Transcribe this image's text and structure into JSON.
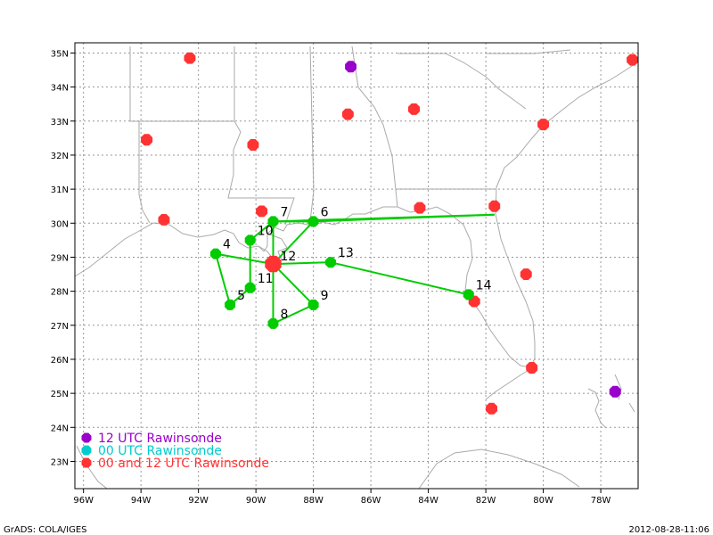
{
  "map": {
    "lon_range": [
      -96.3,
      -76.7
    ],
    "lat_range": [
      22.2,
      35.3
    ],
    "lon_ticks": [
      "96W",
      "94W",
      "92W",
      "90W",
      "88W",
      "86W",
      "84W",
      "82W",
      "80W",
      "78W"
    ],
    "lon_tick_values": [
      -96,
      -94,
      -92,
      -90,
      -88,
      -86,
      -84,
      -82,
      -80,
      -78
    ],
    "lat_ticks": [
      "23N",
      "24N",
      "25N",
      "26N",
      "27N",
      "28N",
      "29N",
      "30N",
      "31N",
      "32N",
      "33N",
      "34N",
      "35N"
    ],
    "lat_tick_values": [
      23,
      24,
      25,
      26,
      27,
      28,
      29,
      30,
      31,
      32,
      33,
      34,
      35
    ],
    "grid": "dotted",
    "colors": {
      "coast": "#aaaaaa",
      "track": "#00cc00",
      "station_both": "#ff3333",
      "station_12": "#9900cc",
      "station_00": "#00cccc",
      "center": "#ff3333"
    }
  },
  "center": {
    "label": "12",
    "lon": -89.4,
    "lat": 28.8
  },
  "drop_points": [
    {
      "label": "4",
      "lon": -91.4,
      "lat": 29.1
    },
    {
      "label": "5",
      "lon": -90.9,
      "lat": 27.6
    },
    {
      "label": "6",
      "lon": -88.0,
      "lat": 30.05
    },
    {
      "label": "7",
      "lon": -89.4,
      "lat": 30.05
    },
    {
      "label": "8",
      "lon": -89.4,
      "lat": 27.05
    },
    {
      "label": "9",
      "lon": -88.0,
      "lat": 27.6
    },
    {
      "label": "10",
      "lon": -90.2,
      "lat": 29.5
    },
    {
      "label": "11",
      "lon": -90.2,
      "lat": 28.1
    },
    {
      "label": "13",
      "lon": -87.4,
      "lat": 28.85
    },
    {
      "label": "14",
      "lon": -82.6,
      "lat": 27.9
    }
  ],
  "tracks": [
    [
      "6",
      "7"
    ],
    [
      "7",
      "10"
    ],
    [
      "10",
      "11"
    ],
    [
      "11",
      "5"
    ],
    [
      "5",
      "4"
    ],
    [
      "4",
      "12"
    ],
    [
      "12",
      "13"
    ],
    [
      "13",
      "14"
    ],
    [
      "12",
      "8"
    ],
    [
      "8",
      "9"
    ],
    [
      "9",
      "12"
    ],
    [
      "12",
      "6"
    ],
    [
      "12",
      "7"
    ],
    [
      "7",
      "FL"
    ],
    [
      "FL",
      "6"
    ]
  ],
  "track_extra_points": {
    "FL": {
      "lon": -81.7,
      "lat": 30.25
    }
  },
  "stations": [
    {
      "type": "both",
      "lon": -92.3,
      "lat": 34.85
    },
    {
      "type": "both",
      "lon": -93.8,
      "lat": 32.45
    },
    {
      "type": "both",
      "lon": -90.1,
      "lat": 32.3
    },
    {
      "type": "both",
      "lon": -86.8,
      "lat": 33.2
    },
    {
      "type": "both",
      "lon": -84.5,
      "lat": 33.35
    },
    {
      "type": "both",
      "lon": -80.0,
      "lat": 32.9
    },
    {
      "type": "both",
      "lon": -76.9,
      "lat": 34.8
    },
    {
      "type": "both",
      "lon": -93.2,
      "lat": 30.1
    },
    {
      "type": "both",
      "lon": -89.8,
      "lat": 30.35
    },
    {
      "type": "both",
      "lon": -84.3,
      "lat": 30.45
    },
    {
      "type": "both",
      "lon": -81.7,
      "lat": 30.5
    },
    {
      "type": "both",
      "lon": -82.4,
      "lat": 27.7
    },
    {
      "type": "both",
      "lon": -80.6,
      "lat": 28.5
    },
    {
      "type": "both",
      "lon": -80.4,
      "lat": 25.75
    },
    {
      "type": "both",
      "lon": -81.8,
      "lat": 24.55
    },
    {
      "type": "12",
      "lon": -86.7,
      "lat": 34.6
    },
    {
      "type": "12",
      "lon": -77.5,
      "lat": 25.05
    }
  ],
  "legend": [
    {
      "type": "12",
      "label": "12 UTC Rawinsonde"
    },
    {
      "type": "00",
      "label": "00 UTC Rawinsonde"
    },
    {
      "type": "both",
      "label": "00 and 12 UTC Rawinsonde"
    }
  ],
  "footer": {
    "left": "GrADS: COLA/IGES",
    "right": "2012-08-28-11:06"
  }
}
